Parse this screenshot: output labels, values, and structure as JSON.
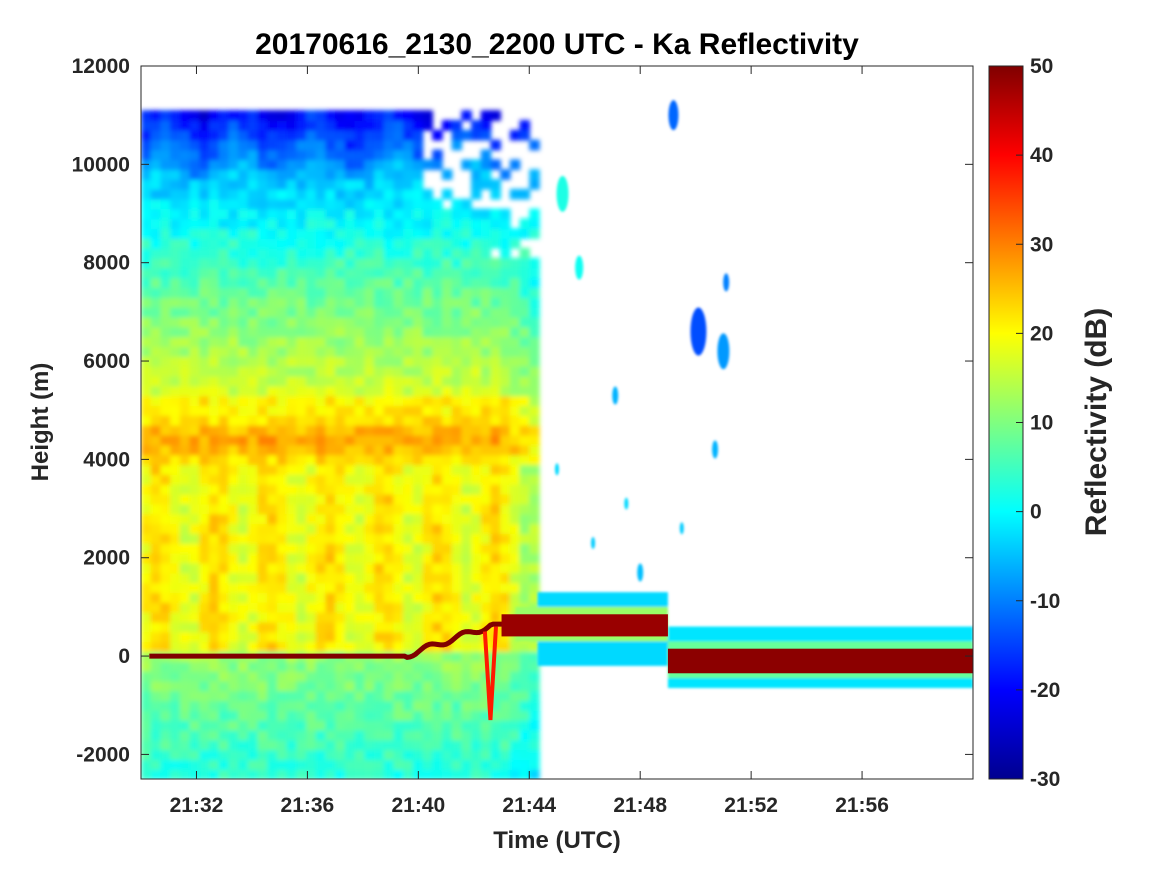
{
  "chart_data": {
    "type": "heatmap",
    "title": "20170616_2130_2200 UTC - Ka Reflectivity",
    "xlabel": "Time (UTC)",
    "ylabel": "Height (m)",
    "x_ticks": [
      "21:32",
      "21:36",
      "21:40",
      "21:44",
      "21:48",
      "21:52",
      "21:56"
    ],
    "x_tick_minutes": [
      2,
      6,
      10,
      14,
      18,
      22,
      26
    ],
    "xlim_minutes": [
      0,
      30
    ],
    "ylim": [
      -2500,
      12000
    ],
    "y_ticks": [
      -2000,
      0,
      2000,
      4000,
      6000,
      8000,
      10000,
      12000
    ],
    "colorbar": {
      "label": "Reflectivity (dB)",
      "range": [
        -30,
        50
      ],
      "ticks": [
        -30,
        -20,
        -10,
        0,
        10,
        20,
        30,
        40,
        50
      ],
      "colormap": "jet"
    },
    "features": [
      {
        "name": "surface return (dB)",
        "segments": [
          {
            "t": [
              0,
              19
            ],
            "height_m": [
              0,
              700
            ],
            "value_db": 50
          },
          {
            "t": [
              19,
              30
            ],
            "height_m": -100,
            "value_db": 50
          }
        ]
      },
      {
        "name": "bright band",
        "t": [
          0,
          12.5
        ],
        "height_m": 4300,
        "value_db": 30
      },
      {
        "name": "cloud echo extent",
        "t": [
          0,
          14.3
        ],
        "height_m": [
          -2500,
          11000
        ],
        "value_db": [
          -25,
          28
        ]
      },
      {
        "name": "sparse echoes",
        "t": [
          14.3,
          21.8
        ],
        "height_m": [
          -500,
          11000
        ],
        "value_db": [
          -15,
          5
        ]
      }
    ]
  }
}
